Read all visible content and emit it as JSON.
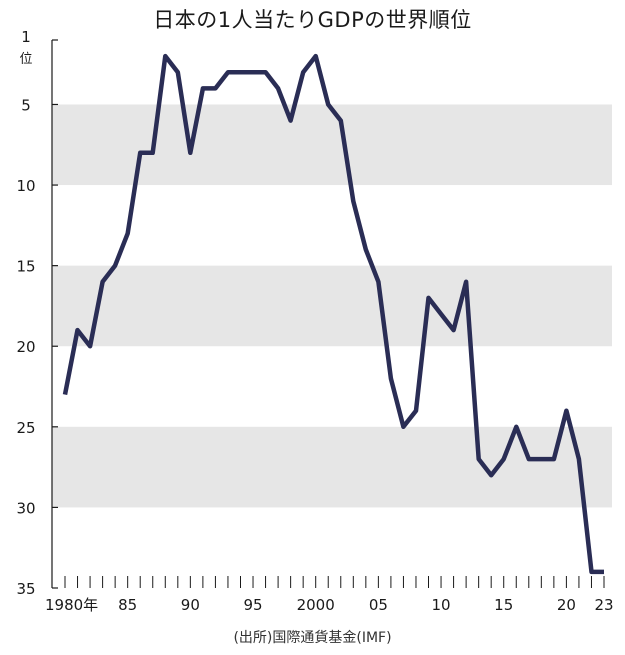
{
  "title": "日本の1人当たりGDPの世界順位",
  "source": "(出所)国際通貨基金(IMF)",
  "chart_data": {
    "type": "line",
    "title": "日本の1人当たりGDPの世界順位",
    "xlabel": "",
    "ylabel": "",
    "y_unit_label": "位",
    "y_inverted": true,
    "ylim": [
      1,
      35
    ],
    "xlim": [
      1980,
      2023
    ],
    "x_tick_labels": [
      {
        "x": 1980,
        "label": "1980年"
      },
      {
        "x": 1985,
        "label": "85"
      },
      {
        "x": 1990,
        "label": "90"
      },
      {
        "x": 1995,
        "label": "95"
      },
      {
        "x": 2000,
        "label": "2000"
      },
      {
        "x": 2005,
        "label": "05"
      },
      {
        "x": 2010,
        "label": "10"
      },
      {
        "x": 2015,
        "label": "15"
      },
      {
        "x": 2020,
        "label": "20"
      },
      {
        "x": 2023,
        "label": "23"
      }
    ],
    "y_tick_labels": [
      {
        "y": 1,
        "label": "1"
      },
      {
        "y": 5,
        "label": "5"
      },
      {
        "y": 10,
        "label": "10"
      },
      {
        "y": 15,
        "label": "15"
      },
      {
        "y": 20,
        "label": "20"
      },
      {
        "y": 25,
        "label": "25"
      },
      {
        "y": 30,
        "label": "30"
      },
      {
        "y": 35,
        "label": "35"
      }
    ],
    "shaded_bands": [
      [
        5,
        10
      ],
      [
        15,
        20
      ],
      [
        25,
        30
      ]
    ],
    "colors": {
      "line": "#2a2d55",
      "band": "#e6e6e6",
      "axis": "#1a1a1a"
    },
    "x": [
      1980,
      1981,
      1982,
      1983,
      1984,
      1985,
      1986,
      1987,
      1988,
      1989,
      1990,
      1991,
      1992,
      1993,
      1994,
      1995,
      1996,
      1997,
      1998,
      1999,
      2000,
      2001,
      2002,
      2003,
      2004,
      2005,
      2006,
      2007,
      2008,
      2009,
      2010,
      2011,
      2012,
      2013,
      2014,
      2015,
      2016,
      2017,
      2018,
      2019,
      2020,
      2021,
      2022,
      2023
    ],
    "series": [
      {
        "values": [
          23,
          19,
          20,
          16,
          15,
          13,
          8,
          8,
          2,
          3,
          8,
          4,
          4,
          3,
          3,
          3,
          3,
          4,
          6,
          3,
          2,
          5,
          6,
          11,
          14,
          16,
          22,
          25,
          24,
          17,
          18,
          19,
          16,
          27,
          28,
          27,
          25,
          27,
          27,
          27,
          24,
          27,
          34,
          34
        ]
      }
    ]
  }
}
